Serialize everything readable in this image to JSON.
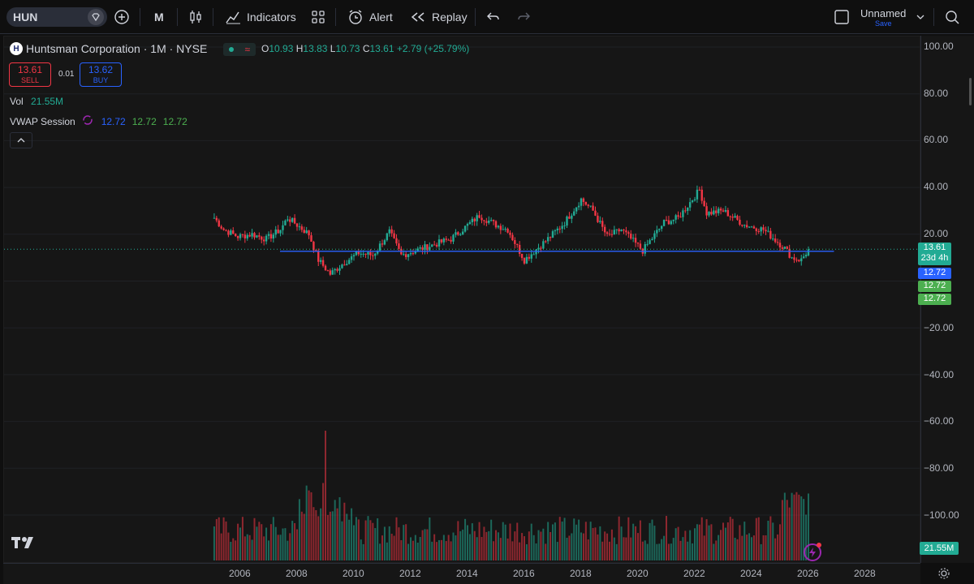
{
  "toolbar": {
    "symbol": "HUN",
    "interval": "M",
    "indicators_label": "Indicators",
    "alert_label": "Alert",
    "replay_label": "Replay",
    "layout_name": "Unnamed",
    "save_label": "Save"
  },
  "legend": {
    "title": "Huntsman Corporation · 1M · NYSE",
    "open_label": "O",
    "open": "10.93",
    "high_label": "H",
    "high": "13.83",
    "low_label": "L",
    "low": "10.73",
    "close_label": "C",
    "close": "13.61",
    "change": "+2.79 (+25.79%)"
  },
  "trade": {
    "sell_price": "13.61",
    "sell_label": "SELL",
    "spread": "0.01",
    "buy_price": "13.62",
    "buy_label": "BUY"
  },
  "indicators": {
    "vol_label": "Vol",
    "vol_value": "21.55M",
    "vwap_label": "VWAP Session",
    "vwap_values": [
      "12.72",
      "12.72",
      "12.72"
    ]
  },
  "price_axis": {
    "labels": [
      "100.00",
      "80.00",
      "60.00",
      "40.00",
      "20.00",
      "−20.00",
      "−40.00",
      "−60.00",
      "−80.00",
      "−100.00"
    ],
    "last_price_tag": "13.61",
    "countdown_tag": "23d 4h",
    "vwap_tags": [
      "12.72",
      "12.72",
      "12.72"
    ],
    "volume_tag": "21.55M"
  },
  "time_axis": {
    "labels": [
      "2006",
      "2008",
      "2010",
      "2012",
      "2014",
      "2016",
      "2018",
      "2020",
      "2022",
      "2024",
      "2026",
      "2028"
    ]
  },
  "colors": {
    "up": "#22ab94",
    "down": "#f23645",
    "vwap": "#2962ff",
    "bg": "#161616"
  },
  "chart_data": {
    "type": "candlestick",
    "interval": "monthly",
    "price_points": [
      [
        "2005-02",
        27
      ],
      [
        "2005-06",
        22
      ],
      [
        "2005-12",
        19
      ],
      [
        "2006-06",
        20
      ],
      [
        "2006-12",
        18
      ],
      [
        "2007-06",
        22
      ],
      [
        "2007-09",
        27
      ],
      [
        "2008-01",
        24
      ],
      [
        "2008-06",
        20
      ],
      [
        "2008-10",
        9
      ],
      [
        "2009-03",
        3
      ],
      [
        "2009-09",
        8
      ],
      [
        "2010-03",
        12
      ],
      [
        "2010-09",
        11
      ],
      [
        "2011-04",
        21
      ],
      [
        "2011-09",
        11
      ],
      [
        "2012-06",
        14
      ],
      [
        "2013-06",
        18
      ],
      [
        "2014-06",
        28
      ],
      [
        "2015-01",
        24
      ],
      [
        "2015-06",
        22
      ],
      [
        "2016-01",
        9
      ],
      [
        "2016-12",
        19
      ],
      [
        "2017-06",
        25
      ],
      [
        "2018-01",
        35
      ],
      [
        "2018-06",
        30
      ],
      [
        "2018-12",
        19
      ],
      [
        "2019-06",
        22
      ],
      [
        "2020-03",
        13
      ],
      [
        "2020-12",
        25
      ],
      [
        "2021-06",
        27
      ],
      [
        "2022-03",
        39
      ],
      [
        "2022-06",
        29
      ],
      [
        "2023-01",
        30
      ],
      [
        "2023-10",
        24
      ],
      [
        "2024-06",
        22
      ],
      [
        "2025-03",
        14
      ],
      [
        "2025-06",
        10
      ],
      [
        "2025-10",
        9
      ],
      [
        "2026-01",
        13.61
      ]
    ],
    "last_candle": {
      "open": 10.93,
      "high": 13.83,
      "low": 10.73,
      "close": 13.61,
      "change": 2.79,
      "change_pct": 25.79
    },
    "horizontal_line": 12.72,
    "volume_peak_date": "2009-01",
    "last_volume": "21.55M",
    "ylim": [
      -100,
      100
    ],
    "x_range": [
      "2005",
      "2028"
    ]
  }
}
